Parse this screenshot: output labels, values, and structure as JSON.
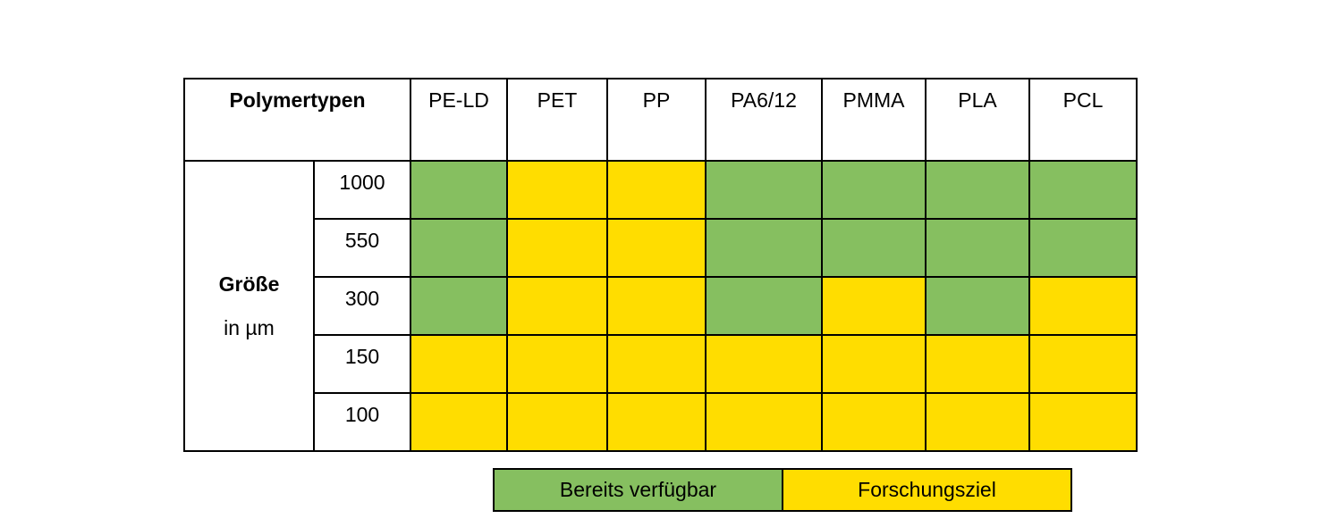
{
  "colors": {
    "available": "#86bf60",
    "research": "#ffdd00",
    "border": "#000000"
  },
  "table": {
    "corner_label": "Polymertypen",
    "columns": [
      "PE-LD",
      "PET",
      "PP",
      "PA6/12",
      "PMMA",
      "PLA",
      "PCL"
    ],
    "row_group_title": "Größe",
    "row_group_unit": "in µm",
    "rows": [
      {
        "size": "1000",
        "status": [
          "available",
          "research",
          "research",
          "available",
          "available",
          "available",
          "available"
        ]
      },
      {
        "size": "550",
        "status": [
          "available",
          "research",
          "research",
          "available",
          "available",
          "available",
          "available"
        ]
      },
      {
        "size": "300",
        "status": [
          "available",
          "research",
          "research",
          "available",
          "research",
          "available",
          "research"
        ]
      },
      {
        "size": "150",
        "status": [
          "research",
          "research",
          "research",
          "research",
          "research",
          "research",
          "research"
        ]
      },
      {
        "size": "100",
        "status": [
          "research",
          "research",
          "research",
          "research",
          "research",
          "research",
          "research"
        ]
      }
    ]
  },
  "legend": {
    "available_label": "Bereits verfügbar",
    "research_label": "Forschungsziel"
  }
}
